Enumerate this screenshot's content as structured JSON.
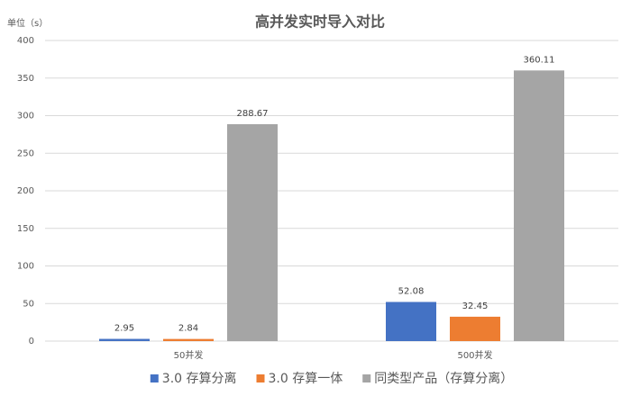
{
  "chart_data": {
    "type": "bar",
    "title": "高并发实时导入对比",
    "y_label": "单位（s）",
    "categories": [
      "50并发",
      "500并发"
    ],
    "series": [
      {
        "name": "3.0 存算分离",
        "color": "#4472c4",
        "values": [
          2.95,
          52.08
        ]
      },
      {
        "name": "3.0 存算一体",
        "color": "#ed7d31",
        "values": [
          2.84,
          32.45
        ]
      },
      {
        "name": "同类型产品（存算分离）",
        "color": "#a5a5a5",
        "values": [
          288.67,
          360.11
        ]
      }
    ],
    "ylim": [
      0,
      400
    ],
    "yticks": [
      0,
      50,
      100,
      150,
      200,
      250,
      300,
      350,
      400
    ],
    "grid": true,
    "legend": "bottom"
  }
}
